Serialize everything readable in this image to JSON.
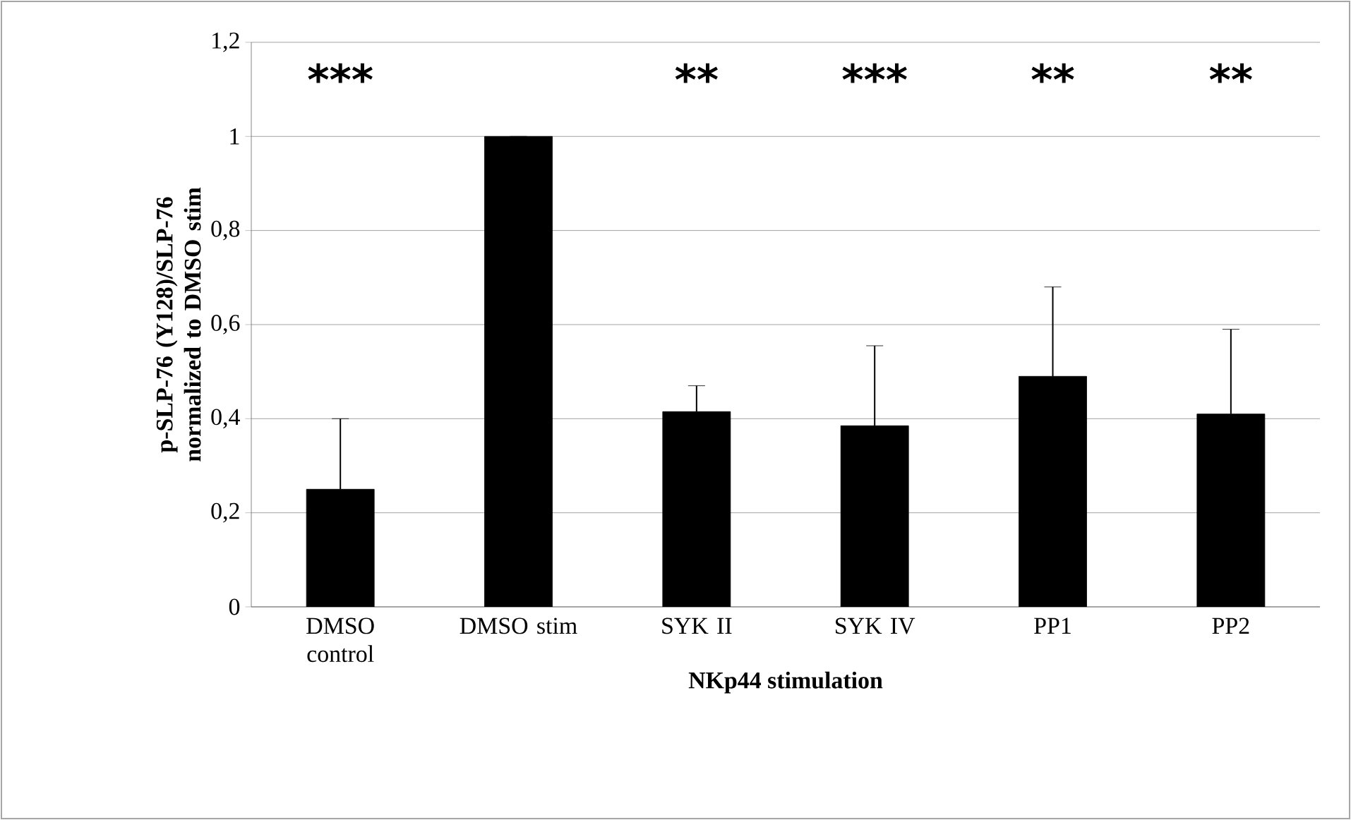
{
  "chart_data": {
    "type": "bar",
    "xlabel": "NKp44 stimulation",
    "ylabel": "p-SLP-76 (Y128)/SLP-76 normalized to DMSO stim",
    "categories": [
      "DMSO control",
      "DMSO stim",
      "SYK II",
      "SYK IV",
      "PP1",
      "PP2"
    ],
    "values": [
      0.25,
      1.0,
      0.415,
      0.385,
      0.49,
      0.41
    ],
    "errors": [
      [
        0.25,
        0.4
      ],
      null,
      [
        0.415,
        0.47
      ],
      [
        0.385,
        0.555
      ],
      [
        0.49,
        0.68
      ],
      [
        0.41,
        0.59
      ]
    ],
    "color": "#000000",
    "ylim": [
      0,
      1.2
    ],
    "yticks": [
      0,
      {
        "value": 0.2,
        "label": "0,2"
      },
      {
        "value": 0.4,
        "label": "0,4"
      },
      {
        "value": 0.6,
        "label": "0,6"
      },
      {
        "value": 0.8,
        "label": "0,8"
      },
      1,
      {
        "value": 1.2,
        "label": "1,2"
      }
    ],
    "grid": "y",
    "annotations": [
      "***",
      "**",
      "***",
      "**",
      "**"
    ]
  }
}
